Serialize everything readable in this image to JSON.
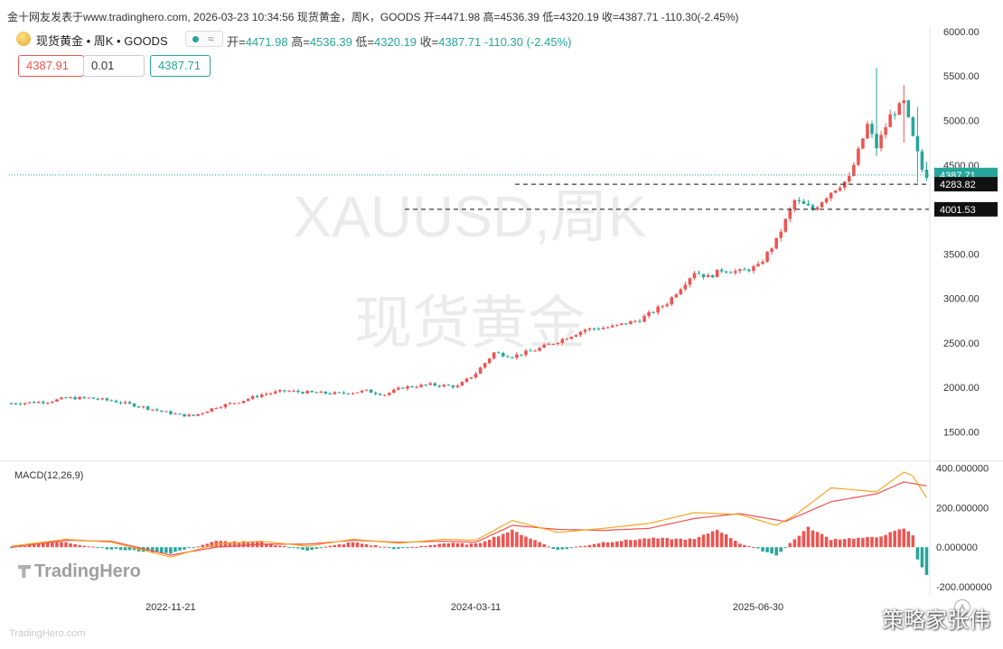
{
  "topbar": {
    "text": "金十网友发表于www.tradinghero.com, 2026-03-23 10:34:56 现货黄金，周K，GOODS 开=4471.98 高=4536.39 低=4320.19 收=4387.71 -110.30(-2.45%)"
  },
  "legend": {
    "symbol": "现货黄金 • 周K • GOODS",
    "open_label": "开=",
    "open": "4471.98",
    "high_label": "高=",
    "high": "4536.39",
    "low_label": "低=",
    "low": "4320.19",
    "close_label": "收=",
    "close": "4387.71",
    "change": "-110.30 (-2.45%)"
  },
  "order": {
    "sell": "4387.91",
    "qty": "0.01",
    "buy": "4387.71"
  },
  "watermark": {
    "line1": "XAUUSD,周K",
    "line2": "现货黄金"
  },
  "logo": "TradingHero",
  "footer": {
    "credit": "策略家张伟",
    "small": "TradingHero.com"
  },
  "icons": {
    "coin": "gold-coin-icon",
    "dot": "status-dot-icon",
    "wave": "wave-icon",
    "scale": "auto-scale-icon"
  },
  "colors": {
    "up": "#ef5350",
    "down": "#26a69a",
    "macd_line": "#ef5350",
    "signal_line": "#f5a623",
    "accent": "#26a69a"
  },
  "chart_data": {
    "type": "candlestick",
    "title": "XAUUSD,周K",
    "price_ticks": [
      "6000.00",
      "5500.00",
      "5000.00",
      "4500.00",
      "4000.00",
      "3500.00",
      "3000.00",
      "2500.00",
      "2000.00",
      "1500.00"
    ],
    "price_range": [
      1200,
      6050
    ],
    "current_price": {
      "label": "4387.71",
      "value": 4387.71
    },
    "levels": [
      {
        "label": "4283.82",
        "value": 4283.82
      },
      {
        "label": "4001.53",
        "value": 4001.53
      }
    ],
    "x_ticks": [
      {
        "label": "2022-11-21",
        "index": 35
      },
      {
        "label": "2024-03-11",
        "index": 102
      },
      {
        "label": "2025-06-30",
        "index": 164
      }
    ],
    "candles_total": 202,
    "price_anchors": [
      [
        0,
        1820
      ],
      [
        8,
        1840
      ],
      [
        12,
        1880
      ],
      [
        17,
        1880
      ],
      [
        22,
        1850
      ],
      [
        28,
        1790
      ],
      [
        33,
        1730
      ],
      [
        37,
        1690
      ],
      [
        40,
        1680
      ],
      [
        45,
        1780
      ],
      [
        50,
        1840
      ],
      [
        55,
        1920
      ],
      [
        60,
        1960
      ],
      [
        66,
        1940
      ],
      [
        72,
        1930
      ],
      [
        78,
        1960
      ],
      [
        82,
        1920
      ],
      [
        86,
        2000
      ],
      [
        92,
        2030
      ],
      [
        98,
        2010
      ],
      [
        102,
        2160
      ],
      [
        106,
        2390
      ],
      [
        110,
        2350
      ],
      [
        115,
        2420
      ],
      [
        120,
        2520
      ],
      [
        126,
        2650
      ],
      [
        132,
        2680
      ],
      [
        138,
        2760
      ],
      [
        144,
        2950
      ],
      [
        150,
        3300
      ],
      [
        153,
        3240
      ],
      [
        156,
        3320
      ],
      [
        160,
        3300
      ],
      [
        164,
        3360
      ],
      [
        168,
        3650
      ],
      [
        172,
        4100
      ],
      [
        176,
        4000
      ],
      [
        180,
        4200
      ],
      [
        184,
        4350
      ],
      [
        188,
        4950
      ],
      [
        190,
        4700
      ],
      [
        193,
        5050
      ],
      [
        196,
        5200
      ],
      [
        198,
        4800
      ],
      [
        200,
        4450
      ],
      [
        201,
        4388
      ]
    ],
    "price_spikes": [
      {
        "index": 190,
        "high": 5590,
        "low": 4600
      },
      {
        "index": 196,
        "high": 5400,
        "low": 4750
      },
      {
        "index": 199,
        "high": 5150,
        "low": 4300
      },
      {
        "index": 201,
        "high": 4536.39,
        "low": 4320.19
      }
    ],
    "macd": {
      "label": "MACD(12,26,9)",
      "ticks": [
        "400.000000",
        "200.000000",
        "0.000000",
        "-200.000000"
      ],
      "range": [
        -200,
        430
      ],
      "signal_anchors": [
        [
          0,
          0
        ],
        [
          12,
          35
        ],
        [
          22,
          30
        ],
        [
          35,
          -40
        ],
        [
          45,
          0
        ],
        [
          55,
          15
        ],
        [
          65,
          15
        ],
        [
          75,
          35
        ],
        [
          85,
          25
        ],
        [
          95,
          30
        ],
        [
          102,
          25
        ],
        [
          110,
          110
        ],
        [
          120,
          90
        ],
        [
          130,
          85
        ],
        [
          140,
          95
        ],
        [
          150,
          145
        ],
        [
          160,
          170
        ],
        [
          170,
          130
        ],
        [
          180,
          230
        ],
        [
          190,
          270
        ],
        [
          196,
          330
        ],
        [
          201,
          310
        ]
      ],
      "macd_anchors": [
        [
          0,
          5
        ],
        [
          12,
          40
        ],
        [
          22,
          25
        ],
        [
          35,
          -50
        ],
        [
          45,
          15
        ],
        [
          55,
          30
        ],
        [
          65,
          5
        ],
        [
          75,
          40
        ],
        [
          85,
          20
        ],
        [
          95,
          40
        ],
        [
          102,
          35
        ],
        [
          110,
          135
        ],
        [
          120,
          75
        ],
        [
          130,
          95
        ],
        [
          140,
          120
        ],
        [
          150,
          175
        ],
        [
          160,
          165
        ],
        [
          168,
          110
        ],
        [
          172,
          160
        ],
        [
          180,
          300
        ],
        [
          190,
          280
        ],
        [
          196,
          380
        ],
        [
          198,
          360
        ],
        [
          201,
          250
        ]
      ],
      "hist_anchors": [
        [
          0,
          0
        ],
        [
          10,
          30
        ],
        [
          22,
          -10
        ],
        [
          35,
          -30
        ],
        [
          45,
          30
        ],
        [
          55,
          25
        ],
        [
          65,
          -15
        ],
        [
          75,
          25
        ],
        [
          85,
          -10
        ],
        [
          95,
          20
        ],
        [
          102,
          15
        ],
        [
          110,
          85
        ],
        [
          120,
          -15
        ],
        [
          130,
          25
        ],
        [
          140,
          45
        ],
        [
          150,
          40
        ],
        [
          155,
          90
        ],
        [
          160,
          20
        ],
        [
          168,
          -40
        ],
        [
          172,
          40
        ],
        [
          175,
          100
        ],
        [
          180,
          40
        ],
        [
          190,
          50
        ],
        [
          196,
          95
        ],
        [
          198,
          60
        ],
        [
          199,
          -60
        ],
        [
          201,
          -140
        ]
      ]
    }
  }
}
